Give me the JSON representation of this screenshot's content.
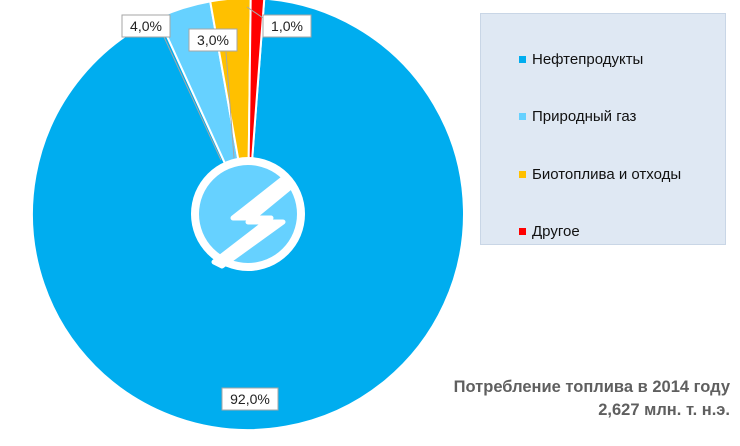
{
  "chart_data": {
    "type": "pie",
    "categories": [
      "Нефтепродукты",
      "Природный газ",
      "Биотоплива и отходы",
      "Другое"
    ],
    "values": [
      92.0,
      4.0,
      3.0,
      1.0
    ],
    "data_labels": [
      "92,0%",
      "4,0%",
      "3,0%",
      "1,0%"
    ],
    "colors": [
      "#00adef",
      "#66d1ff",
      "#ffc000",
      "#ff0000"
    ],
    "legend_position": "right"
  },
  "caption": {
    "line1": "Потребление топлива в 2014 году",
    "line2": "2,627 млн. т. н.э."
  },
  "logo_icon": "lightning-bolt-icon"
}
